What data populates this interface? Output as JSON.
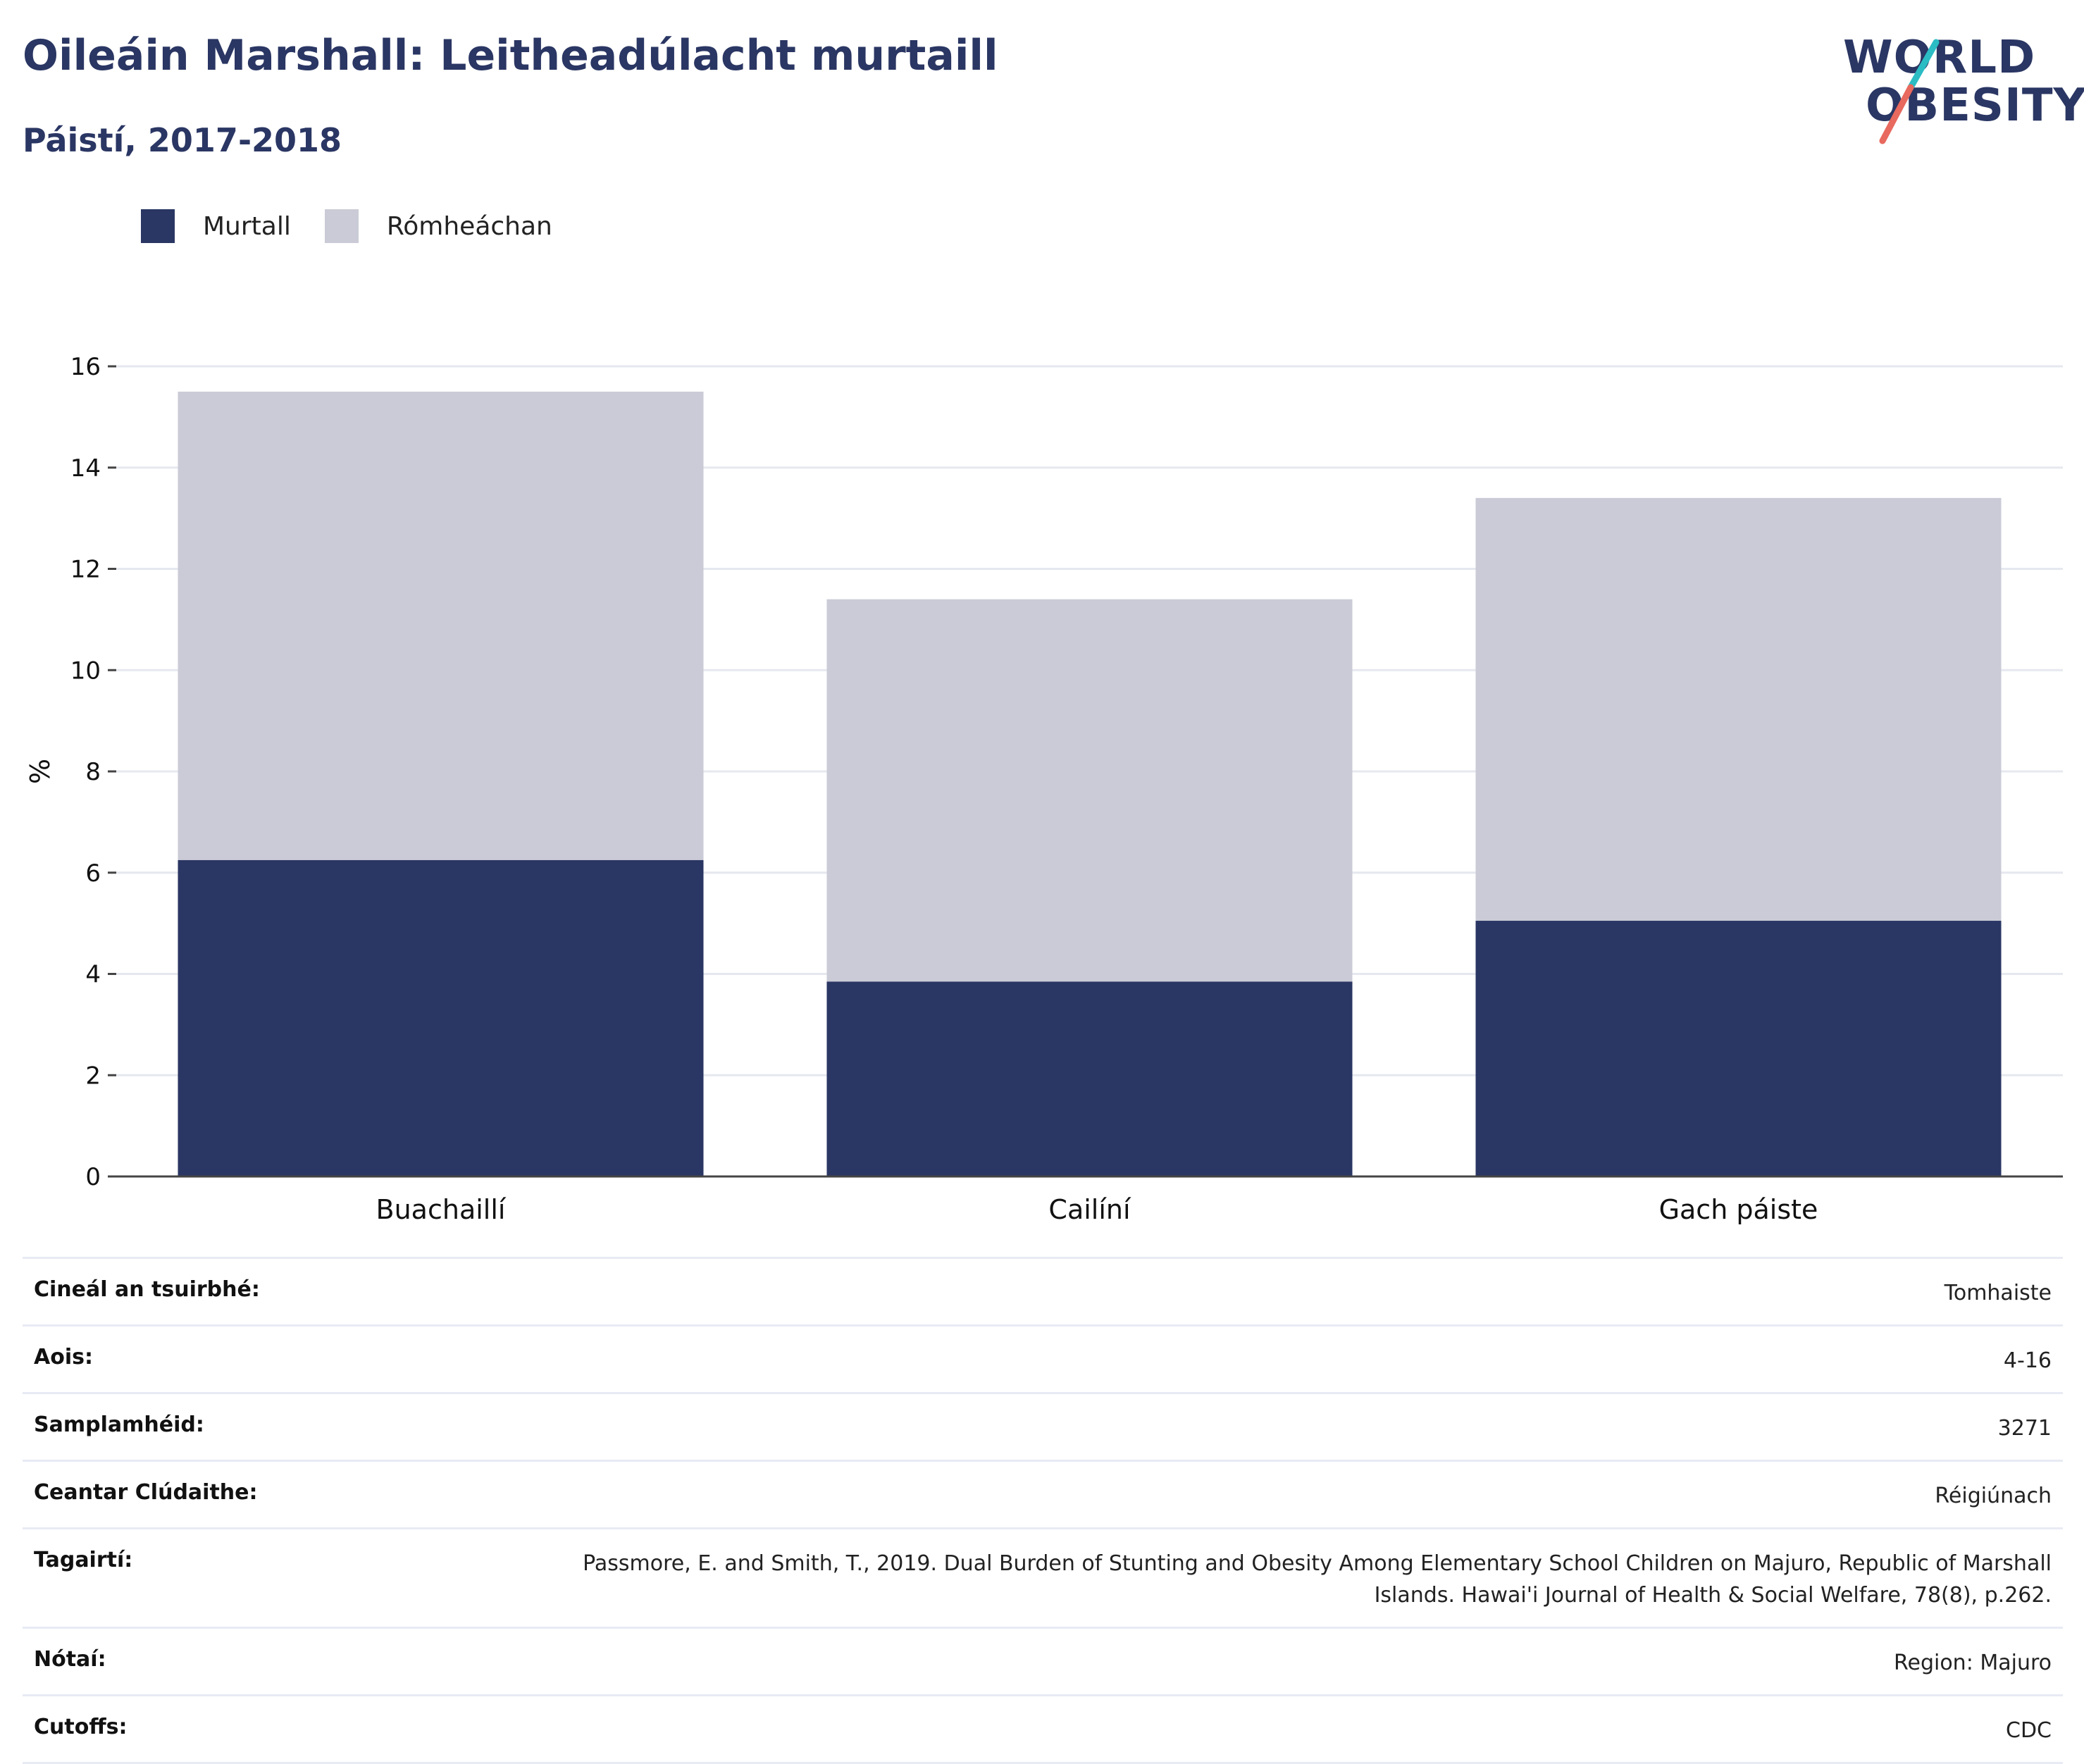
{
  "header": {
    "title": "Oileáin Marshall: Leitheadúlacht murtaill",
    "subtitle": "Páistí, 2017-2018"
  },
  "logo": {
    "line1": "WORLD",
    "line2": "OBESITY"
  },
  "legend": [
    {
      "label": "Murtall",
      "color": "#2a3663"
    },
    {
      "label": "Rómheáchan",
      "color": "#cacbd6"
    }
  ],
  "chart_data": {
    "type": "bar",
    "stacked": true,
    "categories": [
      "Buachaillí",
      "Cailíní",
      "Gach páiste"
    ],
    "series": [
      {
        "name": "Murtall",
        "values": [
          6.25,
          3.85,
          5.05
        ],
        "color": "#2a3663"
      },
      {
        "name": "Rómheáchan",
        "values": [
          9.25,
          7.55,
          8.35
        ],
        "color": "#cacbd6"
      }
    ],
    "ylabel": "%",
    "ylim": [
      0,
      16
    ],
    "yticks": [
      "0",
      "2",
      "4",
      "6",
      "8",
      "10",
      "12",
      "14",
      "16"
    ],
    "grid": true,
    "legend_position": "top-left"
  },
  "meta": [
    {
      "key": "Cineál an tsuirbhé:",
      "value": "Tomhaiste"
    },
    {
      "key": "Aois:",
      "value": "4-16"
    },
    {
      "key": "Samplamhéid:",
      "value": "3271"
    },
    {
      "key": "Ceantar Clúdaithe:",
      "value": "Réigiúnach"
    },
    {
      "key": "Tagairtí:",
      "value": "Passmore, E. and Smith, T., 2019. Dual Burden of Stunting and Obesity Among Elementary School Children on Majuro, Republic of Marshall Islands. Hawai'i Journal of Health & Social Welfare, 78(8), p.262."
    },
    {
      "key": "Nótaí:",
      "value": "Region: Majuro"
    },
    {
      "key": "Cutoffs:",
      "value": "CDC"
    }
  ]
}
